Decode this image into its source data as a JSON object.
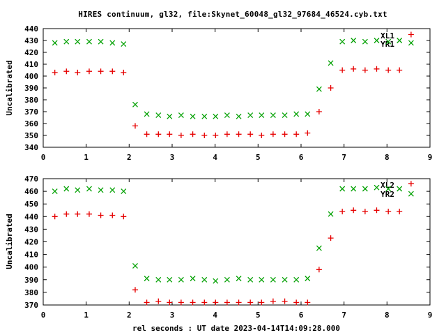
{
  "title": "HIRES continuum, gl32, file:Skynet_60048_gl32_97684_46524.cyb.txt",
  "xlabel": "rel seconds : UT date 2023-04-14T14:09:28.000",
  "colors": {
    "background": "#ffffff",
    "axis": "#000000",
    "text": "#000000",
    "series_green": "#00a000",
    "series_red": "#e60000"
  },
  "chart_data": [
    {
      "type": "scatter",
      "subplot": "top",
      "ylabel": "Uncalibrated",
      "xlim": [
        0,
        9
      ],
      "ylim": [
        340,
        440
      ],
      "xticks": [
        0,
        1,
        2,
        3,
        4,
        5,
        6,
        7,
        8,
        9
      ],
      "yticks": [
        340,
        350,
        360,
        370,
        380,
        390,
        400,
        410,
        420,
        430,
        440
      ],
      "grid": false,
      "legend_position": "top-right-inside",
      "x": [
        0.27,
        0.54,
        0.8,
        1.07,
        1.34,
        1.61,
        1.87,
        2.14,
        2.41,
        2.68,
        2.94,
        3.21,
        3.48,
        3.75,
        4.01,
        4.28,
        4.55,
        4.82,
        5.08,
        5.35,
        5.62,
        5.89,
        6.15,
        6.42,
        6.69,
        6.96,
        7.22,
        7.49,
        7.76,
        8.03,
        8.29,
        8.56
      ],
      "series": [
        {
          "name": "XL1",
          "marker": "x",
          "color": "#00a000",
          "values": [
            428,
            429,
            429,
            429,
            429,
            428,
            427,
            376,
            368,
            367,
            366,
            367,
            366,
            366,
            366,
            367,
            366,
            367,
            367,
            367,
            367,
            368,
            368,
            389,
            411,
            429,
            430,
            429,
            430,
            429,
            430,
            428
          ]
        },
        {
          "name": "YR1",
          "marker": "+",
          "color": "#e60000",
          "values": [
            403,
            404,
            403,
            404,
            404,
            404,
            403,
            358,
            351,
            351,
            351,
            350,
            351,
            350,
            350,
            351,
            351,
            351,
            350,
            351,
            351,
            351,
            352,
            370,
            390,
            405,
            406,
            405,
            406,
            405,
            405,
            435
          ]
        }
      ]
    },
    {
      "type": "scatter",
      "subplot": "bottom",
      "ylabel": "Uncalibrated",
      "xlim": [
        0,
        9
      ],
      "ylim": [
        370,
        470
      ],
      "xticks": [
        0,
        1,
        2,
        3,
        4,
        5,
        6,
        7,
        8,
        9
      ],
      "yticks": [
        370,
        380,
        390,
        400,
        410,
        420,
        430,
        440,
        450,
        460,
        470
      ],
      "grid": false,
      "legend_position": "top-right-inside",
      "x": [
        0.27,
        0.54,
        0.8,
        1.07,
        1.34,
        1.61,
        1.87,
        2.14,
        2.41,
        2.68,
        2.94,
        3.21,
        3.48,
        3.75,
        4.01,
        4.28,
        4.55,
        4.82,
        5.08,
        5.35,
        5.62,
        5.89,
        6.15,
        6.42,
        6.69,
        6.96,
        7.22,
        7.49,
        7.76,
        8.03,
        8.29,
        8.56
      ],
      "series": [
        {
          "name": "XL2",
          "marker": "x",
          "color": "#00a000",
          "values": [
            460,
            462,
            461,
            462,
            461,
            461,
            460,
            401,
            391,
            390,
            390,
            390,
            391,
            390,
            389,
            390,
            391,
            390,
            390,
            390,
            390,
            390,
            391,
            415,
            442,
            462,
            462,
            462,
            463,
            462,
            462,
            458
          ]
        },
        {
          "name": "YR2",
          "marker": "+",
          "color": "#e60000",
          "values": [
            440,
            442,
            442,
            442,
            441,
            441,
            440,
            382,
            372,
            373,
            372,
            372,
            372,
            372,
            372,
            372,
            372,
            372,
            372,
            373,
            373,
            372,
            372,
            398,
            423,
            444,
            445,
            444,
            445,
            444,
            444,
            466
          ]
        }
      ]
    }
  ]
}
